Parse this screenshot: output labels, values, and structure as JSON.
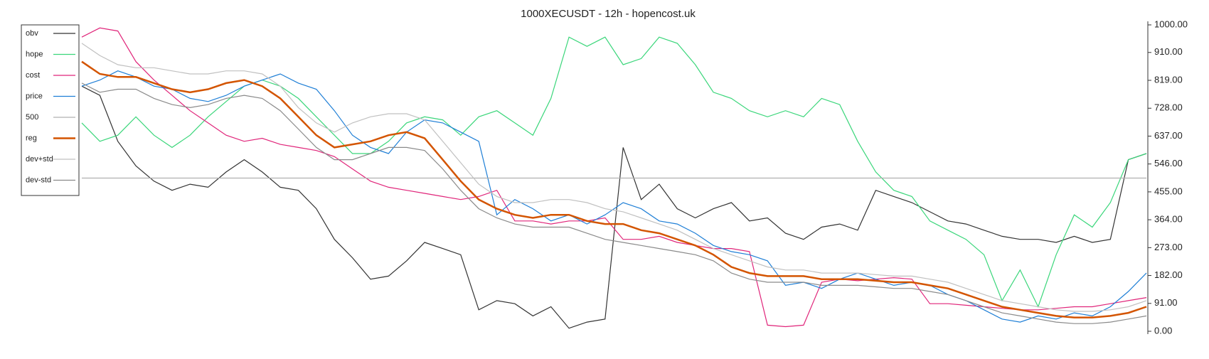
{
  "chart_data": {
    "type": "line",
    "title": "1000XECUSDT - 12h - hopencost.uk",
    "ylim": [
      0,
      1000
    ],
    "yticks": [
      {
        "value": 0,
        "label": "0.00"
      },
      {
        "value": 91,
        "label": "91.00"
      },
      {
        "value": 182,
        "label": "182.00"
      },
      {
        "value": 273,
        "label": "273.00"
      },
      {
        "value": 364,
        "label": "364.00"
      },
      {
        "value": 455,
        "label": "455.00"
      },
      {
        "value": 546,
        "label": "546.00"
      },
      {
        "value": 637,
        "label": "637.00"
      },
      {
        "value": 728,
        "label": "728.00"
      },
      {
        "value": 819,
        "label": "819.00"
      },
      {
        "value": 910,
        "label": "910.00"
      },
      {
        "value": 1000,
        "label": "1000.00"
      }
    ],
    "legend": "upper left",
    "series": [
      {
        "name": "obv",
        "color": "#333333",
        "width": 1.2,
        "values": [
          800,
          770,
          620,
          540,
          490,
          460,
          480,
          470,
          520,
          560,
          520,
          470,
          460,
          400,
          300,
          240,
          170,
          180,
          230,
          290,
          270,
          250,
          70,
          100,
          90,
          50,
          80,
          10,
          30,
          40,
          600,
          430,
          480,
          400,
          370,
          400,
          420,
          360,
          370,
          320,
          300,
          340,
          350,
          330,
          460,
          440,
          420,
          390,
          360,
          350,
          330,
          310,
          300,
          300,
          290,
          310,
          290,
          300,
          560,
          580
        ]
      },
      {
        "name": "hope",
        "color": "#3ad67a",
        "width": 1.2,
        "values": [
          680,
          620,
          640,
          700,
          640,
          600,
          640,
          700,
          750,
          800,
          820,
          800,
          760,
          700,
          640,
          580,
          580,
          620,
          680,
          700,
          690,
          640,
          700,
          720,
          680,
          640,
          760,
          960,
          930,
          960,
          870,
          890,
          960,
          940,
          870,
          780,
          760,
          720,
          700,
          720,
          700,
          760,
          740,
          620,
          520,
          460,
          440,
          360,
          330,
          300,
          250,
          100,
          200,
          80,
          250,
          380,
          340,
          420,
          560,
          580
        ]
      },
      {
        "name": "cost",
        "color": "#e0257a",
        "width": 1.2,
        "values": [
          960,
          990,
          980,
          880,
          820,
          770,
          720,
          680,
          640,
          620,
          630,
          610,
          600,
          590,
          570,
          530,
          490,
          470,
          460,
          450,
          440,
          430,
          440,
          460,
          360,
          360,
          350,
          360,
          360,
          370,
          300,
          300,
          310,
          290,
          280,
          270,
          270,
          260,
          20,
          15,
          20,
          160,
          170,
          165,
          170,
          175,
          170,
          90,
          90,
          85,
          80,
          75,
          70,
          70,
          75,
          80,
          80,
          90,
          100,
          110
        ]
      },
      {
        "name": "price",
        "color": "#1f7fd6",
        "width": 1.2,
        "values": [
          800,
          820,
          850,
          830,
          800,
          790,
          760,
          750,
          770,
          800,
          820,
          840,
          810,
          790,
          720,
          640,
          600,
          580,
          650,
          690,
          680,
          650,
          620,
          380,
          430,
          400,
          360,
          380,
          350,
          380,
          420,
          400,
          360,
          350,
          320,
          280,
          260,
          250,
          230,
          150,
          160,
          140,
          170,
          190,
          170,
          150,
          160,
          150,
          120,
          100,
          70,
          40,
          30,
          50,
          40,
          60,
          50,
          80,
          130,
          190
        ]
      },
      {
        "name": "500",
        "color": "#b0b0b0",
        "width": 1.2,
        "values": [
          500,
          500,
          500,
          500,
          500,
          500,
          500,
          500,
          500,
          500,
          500,
          500,
          500,
          500,
          500,
          500,
          500,
          500,
          500,
          500,
          500,
          500,
          500,
          500,
          500,
          500,
          500,
          500,
          500,
          500,
          500,
          500,
          500,
          500,
          500,
          500,
          500,
          500,
          500,
          500,
          500,
          500,
          500,
          500,
          500,
          500,
          500,
          500,
          500,
          500,
          500,
          500,
          500,
          500,
          500,
          500,
          500,
          500,
          500,
          500
        ]
      },
      {
        "name": "reg",
        "color": "#d35400",
        "width": 2.5,
        "values": [
          880,
          840,
          830,
          830,
          810,
          790,
          780,
          790,
          810,
          820,
          800,
          760,
          700,
          640,
          600,
          610,
          620,
          640,
          650,
          630,
          560,
          490,
          430,
          400,
          380,
          370,
          380,
          380,
          360,
          350,
          350,
          330,
          320,
          300,
          280,
          250,
          210,
          190,
          180,
          180,
          180,
          170,
          170,
          170,
          165,
          160,
          160,
          150,
          140,
          120,
          100,
          80,
          70,
          60,
          50,
          45,
          45,
          50,
          60,
          80
        ]
      },
      {
        "name": "dev+std",
        "color": "#c0c0c0",
        "width": 1.2,
        "values": [
          940,
          900,
          870,
          860,
          860,
          850,
          840,
          840,
          850,
          850,
          840,
          800,
          730,
          680,
          650,
          680,
          700,
          710,
          710,
          690,
          620,
          550,
          480,
          440,
          420,
          420,
          430,
          430,
          420,
          400,
          390,
          370,
          350,
          330,
          300,
          270,
          250,
          230,
          210,
          200,
          200,
          190,
          190,
          190,
          185,
          180,
          180,
          170,
          160,
          140,
          120,
          100,
          90,
          80,
          70,
          65,
          65,
          70,
          80,
          100
        ]
      },
      {
        "name": "dev-std",
        "color": "#8a8a8a",
        "width": 1.2,
        "values": [
          810,
          780,
          790,
          790,
          760,
          740,
          730,
          740,
          760,
          770,
          760,
          720,
          660,
          600,
          560,
          560,
          580,
          600,
          600,
          590,
          530,
          460,
          400,
          370,
          350,
          340,
          340,
          340,
          320,
          300,
          290,
          280,
          270,
          260,
          250,
          230,
          190,
          170,
          160,
          160,
          160,
          150,
          150,
          150,
          145,
          140,
          140,
          130,
          120,
          100,
          80,
          60,
          50,
          40,
          30,
          25,
          25,
          30,
          40,
          50
        ]
      }
    ]
  }
}
